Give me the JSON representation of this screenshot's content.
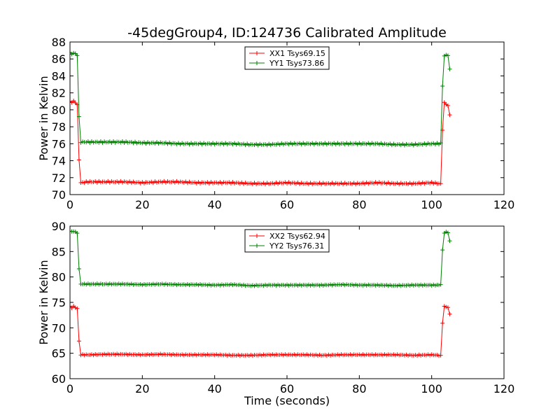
{
  "title": "-45degGroup4, ID:124736 Calibrated Amplitude",
  "colors": {
    "xx": "#ff0000",
    "yy": "#008000"
  },
  "chart_data": [
    {
      "type": "line",
      "title": "-45degGroup4, ID:124736 Calibrated Amplitude",
      "ylabel": "Power in Kelvin",
      "xlabel": "",
      "xlim": [
        0,
        120
      ],
      "ylim": [
        70,
        88
      ],
      "xticks": [
        "0",
        "20",
        "40",
        "60",
        "80",
        "100",
        "120"
      ],
      "yticks": [
        "70",
        "72",
        "74",
        "76",
        "78",
        "80",
        "82",
        "84",
        "86",
        "88"
      ],
      "grid": false,
      "legend_position": "upper-center",
      "series": [
        {
          "name": "XX1 Tsys69.15",
          "color": "#ff0000",
          "x": [
            0,
            0.5,
            1,
            1.5,
            2,
            2.5,
            3,
            5,
            10,
            15,
            20,
            25,
            30,
            35,
            40,
            45,
            50,
            55,
            60,
            65,
            70,
            75,
            80,
            85,
            90,
            95,
            100,
            102,
            102.5,
            103,
            103.5,
            104,
            104.5,
            105
          ],
          "values": [
            81.0,
            80.9,
            81.0,
            80.9,
            80.6,
            74.1,
            71.4,
            71.5,
            71.5,
            71.5,
            71.4,
            71.5,
            71.5,
            71.4,
            71.4,
            71.4,
            71.3,
            71.3,
            71.4,
            71.3,
            71.3,
            71.3,
            71.3,
            71.4,
            71.3,
            71.3,
            71.4,
            71.3,
            71.3,
            77.6,
            80.8,
            80.7,
            80.5,
            79.4
          ]
        },
        {
          "name": "YY1 Tsys73.86",
          "color": "#008000",
          "x": [
            0,
            0.5,
            1,
            1.5,
            2,
            2.5,
            3,
            5,
            10,
            15,
            20,
            25,
            30,
            35,
            40,
            45,
            50,
            55,
            60,
            65,
            70,
            75,
            80,
            85,
            90,
            95,
            100,
            102,
            102.5,
            103,
            103.5,
            104,
            104.5,
            105
          ],
          "values": [
            86.7,
            86.6,
            86.7,
            86.6,
            86.4,
            79.2,
            76.2,
            76.2,
            76.2,
            76.2,
            76.1,
            76.1,
            76.0,
            76.0,
            76.0,
            76.0,
            75.9,
            75.9,
            76.0,
            76.0,
            76.0,
            76.0,
            76.0,
            76.0,
            75.9,
            75.9,
            76.0,
            76.0,
            76.1,
            82.8,
            86.4,
            86.4,
            86.4,
            84.8
          ]
        }
      ]
    },
    {
      "type": "line",
      "title": "",
      "ylabel": "Power in Kelvin",
      "xlabel": "Time (seconds)",
      "xlim": [
        0,
        120
      ],
      "ylim": [
        60,
        90
      ],
      "xticks": [
        "0",
        "20",
        "40",
        "60",
        "80",
        "100",
        "120"
      ],
      "yticks": [
        "60",
        "65",
        "70",
        "75",
        "80",
        "85",
        "90"
      ],
      "grid": false,
      "legend_position": "upper-center",
      "series": [
        {
          "name": "XX2 Tsys62.94",
          "color": "#ff0000",
          "x": [
            0,
            0.5,
            1,
            1.5,
            2,
            2.5,
            3,
            5,
            10,
            15,
            20,
            25,
            30,
            35,
            40,
            45,
            50,
            55,
            60,
            65,
            70,
            75,
            80,
            85,
            90,
            95,
            100,
            102,
            102.5,
            103,
            103.5,
            104,
            104.5,
            105
          ],
          "values": [
            74.2,
            74.0,
            74.2,
            74.0,
            73.8,
            67.4,
            64.7,
            64.7,
            64.8,
            64.8,
            64.7,
            64.8,
            64.7,
            64.7,
            64.7,
            64.6,
            64.6,
            64.7,
            64.7,
            64.7,
            64.6,
            64.7,
            64.7,
            64.7,
            64.7,
            64.6,
            64.7,
            64.6,
            64.6,
            70.9,
            74.2,
            74.1,
            74.0,
            72.7
          ]
        },
        {
          "name": "YY2 Tsys76.31",
          "color": "#008000",
          "x": [
            0,
            0.5,
            1,
            1.5,
            2,
            2.5,
            3,
            5,
            10,
            15,
            20,
            25,
            30,
            35,
            40,
            45,
            50,
            55,
            60,
            65,
            70,
            75,
            80,
            85,
            90,
            95,
            100,
            102,
            102.5,
            103,
            103.5,
            104,
            104.5,
            105
          ],
          "values": [
            89.0,
            88.9,
            89.0,
            88.8,
            88.6,
            81.6,
            78.6,
            78.6,
            78.6,
            78.6,
            78.5,
            78.6,
            78.5,
            78.5,
            78.4,
            78.5,
            78.3,
            78.4,
            78.4,
            78.4,
            78.4,
            78.5,
            78.4,
            78.4,
            78.3,
            78.4,
            78.4,
            78.4,
            78.5,
            85.3,
            88.7,
            88.8,
            88.7,
            87.1
          ]
        }
      ]
    }
  ]
}
